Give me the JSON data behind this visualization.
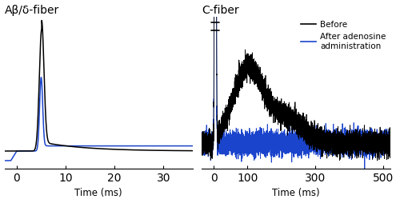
{
  "left_title": "Aβ/δ-fiber",
  "right_title": "C-fiber",
  "left_xlabel": "Time (ms)",
  "right_xlabel": "Time (ms)",
  "left_xlim": [
    -2.5,
    36
  ],
  "left_xticks": [
    0,
    10,
    20,
    30
  ],
  "right_xlim": [
    -35,
    520
  ],
  "right_xticks": [
    0,
    100,
    300,
    500
  ],
  "legend_before": "Before",
  "legend_after": "After adenosine\nadministration",
  "color_black": "#000000",
  "color_blue": "#1a44cc",
  "left_ylim": [
    -0.55,
    4.2
  ],
  "right_ylim": [
    -0.18,
    0.9
  ],
  "figsize": [
    5.0,
    2.54
  ],
  "dpi": 100
}
